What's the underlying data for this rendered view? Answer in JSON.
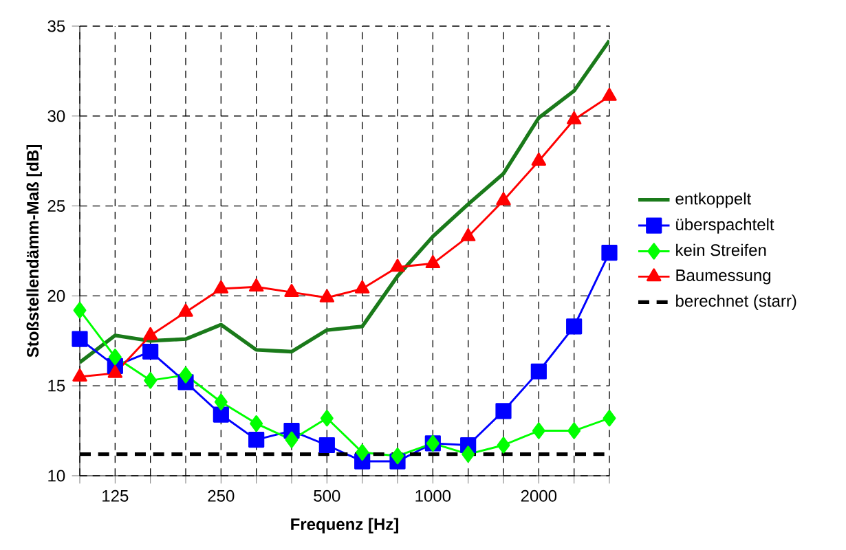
{
  "chart_data": {
    "type": "line",
    "xlabel": "Frequenz [Hz]",
    "ylabel": "Stoßstellendämm-Maß [dB]",
    "categories": [
      null,
      "125",
      null,
      null,
      "250",
      null,
      null,
      "500",
      null,
      null,
      "1000",
      null,
      null,
      "2000",
      null,
      null
    ],
    "ylim": [
      10,
      35
    ],
    "yticks": [
      10,
      15,
      20,
      25,
      30,
      35
    ],
    "grid": true,
    "legend": "right",
    "series": [
      {
        "name": "entkoppelt",
        "color": "#1a7a1a",
        "marker": "none",
        "line_style": "solid",
        "values": [
          16.3,
          17.8,
          17.5,
          17.6,
          18.4,
          17.0,
          16.9,
          18.1,
          18.3,
          21.1,
          23.3,
          25.1,
          26.8,
          29.9,
          31.4,
          34.2
        ]
      },
      {
        "name": "überspachtelt",
        "color": "#0000ff",
        "marker": "square",
        "line_style": "solid",
        "values": [
          17.6,
          16.1,
          16.9,
          15.2,
          13.4,
          12.0,
          12.5,
          11.7,
          10.8,
          10.8,
          11.8,
          11.7,
          13.6,
          15.8,
          18.3,
          22.4
        ]
      },
      {
        "name": "kein Streifen",
        "color": "#00ff00",
        "marker": "diamond",
        "line_style": "solid",
        "values": [
          19.2,
          16.6,
          15.3,
          15.6,
          14.1,
          12.9,
          12.0,
          13.2,
          11.3,
          11.1,
          11.8,
          11.2,
          11.7,
          12.5,
          12.5,
          13.2
        ]
      },
      {
        "name": "Baumessung",
        "color": "#ff0000",
        "marker": "triangle",
        "line_style": "solid",
        "values": [
          15.5,
          15.7,
          17.8,
          19.1,
          20.4,
          20.5,
          20.2,
          19.9,
          20.4,
          21.6,
          21.8,
          23.3,
          25.3,
          27.5,
          29.8,
          31.1
        ]
      },
      {
        "name": "berechnet (starr)",
        "color": "#000000",
        "marker": "none",
        "line_style": "dashed",
        "values": [
          11.2,
          11.2,
          11.2,
          11.2,
          11.2,
          11.2,
          11.2,
          11.2,
          11.2,
          11.2,
          11.2,
          11.2,
          11.2,
          11.2,
          11.2,
          11.2
        ]
      }
    ]
  }
}
